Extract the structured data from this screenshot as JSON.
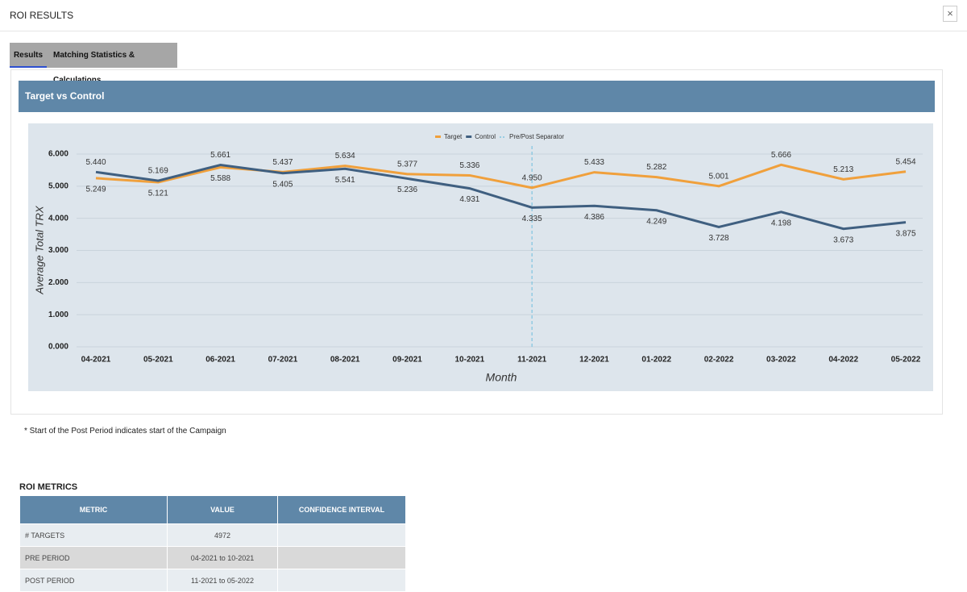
{
  "header": {
    "title": "ROI RESULTS",
    "close": "×"
  },
  "tabs": [
    "Results",
    "Matching Statistics & Calculations"
  ],
  "panel_title": "Target vs Control",
  "chart_data": {
    "type": "line",
    "x_label": "Month",
    "y_label": "Average Total TRX",
    "categories": [
      "04-2021",
      "05-2021",
      "06-2021",
      "07-2021",
      "08-2021",
      "09-2021",
      "10-2021",
      "11-2021",
      "12-2021",
      "01-2022",
      "02-2022",
      "03-2022",
      "04-2022",
      "05-2022"
    ],
    "series": [
      {
        "name": "Target",
        "color": "#f0a03c",
        "values": [
          5.249,
          5.121,
          5.588,
          5.437,
          5.634,
          5.377,
          5.336,
          4.95,
          5.433,
          5.282,
          5.001,
          5.666,
          5.213,
          5.454
        ],
        "value_labels": [
          "5.249",
          "5.121",
          "5.588",
          "5.437",
          "5.634",
          "5.377",
          "5.336",
          "4.950",
          "5.433",
          "5.282",
          "5.001",
          "5.666",
          "5.213",
          "5.454"
        ]
      },
      {
        "name": "Control",
        "color": "#3f5f80",
        "values": [
          5.44,
          5.169,
          5.661,
          5.405,
          5.541,
          5.236,
          4.931,
          4.335,
          4.386,
          4.249,
          3.728,
          4.198,
          3.673,
          3.875
        ],
        "value_labels": [
          "5.440",
          "5.169",
          "5.661",
          "5.405",
          "5.541",
          "5.236",
          "4.931",
          "4.335",
          "4.386",
          "4.249",
          "3.728",
          "4.198",
          "3.673",
          "3.875"
        ]
      }
    ],
    "separator": {
      "name": "Pre/Post Separator",
      "color": "#7fc4e0",
      "x": "11-2021"
    },
    "ylim": [
      0,
      6
    ],
    "yticks": [
      {
        "value": 0,
        "label": "0.000"
      },
      {
        "value": 1,
        "label": "1.000"
      },
      {
        "value": 2,
        "label": "2.000"
      },
      {
        "value": 3,
        "label": "3.000"
      },
      {
        "value": 4,
        "label": "4.000"
      },
      {
        "value": 5,
        "label": "5.000"
      },
      {
        "value": 6,
        "label": "6.000"
      }
    ],
    "grid": true,
    "legend": "top"
  },
  "note": "* Start of the Post Period indicates start of the Campaign",
  "metrics": {
    "title": "ROI METRICS",
    "columns": [
      "METRIC",
      "VALUE",
      "CONFIDENCE INTERVAL"
    ],
    "rows": [
      [
        "# TARGETS",
        "4972"
      ],
      [
        "PRE PERIOD",
        "04-2021 to 10-2021"
      ],
      [
        "POST PERIOD",
        "11-2021 to 05-2022"
      ]
    ]
  }
}
